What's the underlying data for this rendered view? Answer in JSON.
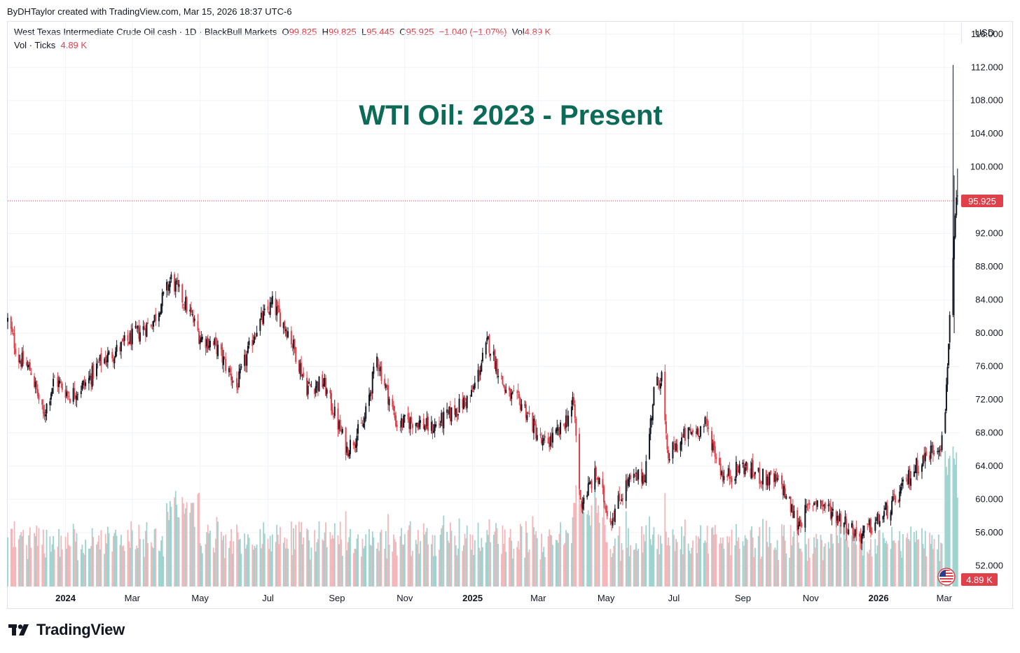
{
  "header": {
    "creator": "ByDHTaylor created with TradingView.com, Mar 15, 2026 18:37 UTC-6"
  },
  "legend": {
    "symbol": "West Texas Intermediate Crude Oil cash · 1D · BlackBull Markets",
    "o_label": "O",
    "o_value": "99.825",
    "h_label": "H",
    "h_value": "99.825",
    "l_label": "L",
    "l_value": "95.445",
    "c_label": "C",
    "c_value": "95.925",
    "change": "−1.040 (−1.07%)",
    "vol_label": "Vol",
    "vol_value": "4.89 K",
    "vol_row_label": "Vol · Ticks",
    "vol_row_value": "4.89 K"
  },
  "currency": "USD",
  "footer": {
    "brand": "TradingView"
  },
  "colors": {
    "up": "#131722",
    "down": "#e0404a",
    "vol_up": "#9ed3cf",
    "vol_down": "#f5b6ba",
    "title": "#0c6b56",
    "price_tag": "#e0404a"
  },
  "chart_data": {
    "type": "candlestick",
    "title": "WTI Oil: 2023 - Present",
    "x_range": [
      "2023-11-10",
      "2026-03-15"
    ],
    "x_ticks": [
      {
        "date": "2024-01-01",
        "label": "2024",
        "bold": true
      },
      {
        "date": "2024-03-01",
        "label": "Mar"
      },
      {
        "date": "2024-05-01",
        "label": "May"
      },
      {
        "date": "2024-07-01",
        "label": "Jul"
      },
      {
        "date": "2024-09-01",
        "label": "Sep"
      },
      {
        "date": "2024-11-01",
        "label": "Nov"
      },
      {
        "date": "2025-01-01",
        "label": "2025",
        "bold": true
      },
      {
        "date": "2025-03-01",
        "label": "Mar"
      },
      {
        "date": "2025-05-01",
        "label": "May"
      },
      {
        "date": "2025-07-01",
        "label": "Jul"
      },
      {
        "date": "2025-09-01",
        "label": "Sep"
      },
      {
        "date": "2025-11-01",
        "label": "Nov"
      },
      {
        "date": "2026-01-01",
        "label": "2026",
        "bold": true
      },
      {
        "date": "2026-03-01",
        "label": "Mar"
      }
    ],
    "y_range": [
      49.5,
      117.5
    ],
    "y_ticks": [
      52,
      56,
      60,
      64,
      68,
      72,
      76,
      80,
      84,
      88,
      92,
      96,
      100,
      104,
      108,
      112,
      116
    ],
    "y_tick_labels": [
      "52.000",
      "56.000",
      "60.000",
      "64.000",
      "68.000",
      "72.000",
      "76.000",
      "80.000",
      "84.000",
      "88.000",
      "92.000",
      "96.000",
      "100.000",
      "104.000",
      "108.000",
      "112.000",
      "116.000"
    ],
    "last_price": 95.925,
    "last_price_label": "95.925",
    "last_volume_label": "4.89 K",
    "grid": true,
    "price_path": [
      [
        "2023-11-10",
        81.5
      ],
      [
        "2023-11-20",
        77.0
      ],
      [
        "2023-12-01",
        75.5
      ],
      [
        "2023-12-12",
        70.0
      ],
      [
        "2023-12-22",
        74.5
      ],
      [
        "2024-01-05",
        72.5
      ],
      [
        "2024-01-20",
        74.0
      ],
      [
        "2024-02-01",
        76.5
      ],
      [
        "2024-02-15",
        77.8
      ],
      [
        "2024-03-01",
        79.5
      ],
      [
        "2024-03-20",
        81.5
      ],
      [
        "2024-04-05",
        86.5
      ],
      [
        "2024-04-20",
        83.0
      ],
      [
        "2024-05-01",
        79.5
      ],
      [
        "2024-05-15",
        78.5
      ],
      [
        "2024-06-03",
        73.5
      ],
      [
        "2024-06-20",
        80.5
      ],
      [
        "2024-07-05",
        83.5
      ],
      [
        "2024-07-20",
        80.0
      ],
      [
        "2024-08-05",
        73.5
      ],
      [
        "2024-08-20",
        74.0
      ],
      [
        "2024-09-10",
        66.0
      ],
      [
        "2024-09-25",
        69.0
      ],
      [
        "2024-10-07",
        77.0
      ],
      [
        "2024-10-25",
        69.0
      ],
      [
        "2024-11-10",
        69.5
      ],
      [
        "2024-11-25",
        68.5
      ],
      [
        "2024-12-10",
        70.0
      ],
      [
        "2024-12-31",
        72.5
      ],
      [
        "2025-01-15",
        79.0
      ],
      [
        "2025-02-01",
        72.5
      ],
      [
        "2025-02-15",
        71.5
      ],
      [
        "2025-03-05",
        66.5
      ],
      [
        "2025-03-20",
        68.0
      ],
      [
        "2025-04-02",
        71.5
      ],
      [
        "2025-04-08",
        59.5
      ],
      [
        "2025-04-22",
        63.0
      ],
      [
        "2025-05-05",
        57.5
      ],
      [
        "2025-05-20",
        62.0
      ],
      [
        "2025-06-05",
        63.0
      ],
      [
        "2025-06-13",
        73.0
      ],
      [
        "2025-06-20",
        75.0
      ],
      [
        "2025-06-25",
        65.0
      ],
      [
        "2025-07-10",
        67.5
      ],
      [
        "2025-07-30",
        69.0
      ],
      [
        "2025-08-15",
        62.5
      ],
      [
        "2025-09-01",
        64.0
      ],
      [
        "2025-09-20",
        62.5
      ],
      [
        "2025-10-05",
        62.0
      ],
      [
        "2025-10-20",
        57.0
      ],
      [
        "2025-11-05",
        60.0
      ],
      [
        "2025-11-25",
        58.0
      ],
      [
        "2025-12-15",
        55.5
      ],
      [
        "2026-01-01",
        57.5
      ],
      [
        "2026-01-15",
        59.5
      ],
      [
        "2026-02-01",
        63.5
      ],
      [
        "2026-02-15",
        65.5
      ],
      [
        "2026-02-27",
        67.0
      ],
      [
        "2026-03-02",
        71.0
      ],
      [
        "2026-03-06",
        82.0
      ],
      [
        "2026-03-09",
        88.0
      ],
      [
        "2026-03-12",
        96.0
      ],
      [
        "2026-03-13",
        95.925
      ]
    ],
    "spikes": [
      {
        "date": "2026-03-09",
        "high": 112.3,
        "low": 82.0
      },
      {
        "date": "2026-03-10",
        "high": 99.0,
        "low": 80.0
      },
      {
        "date": "2026-03-13",
        "high": 99.825,
        "low": 95.445
      }
    ]
  }
}
